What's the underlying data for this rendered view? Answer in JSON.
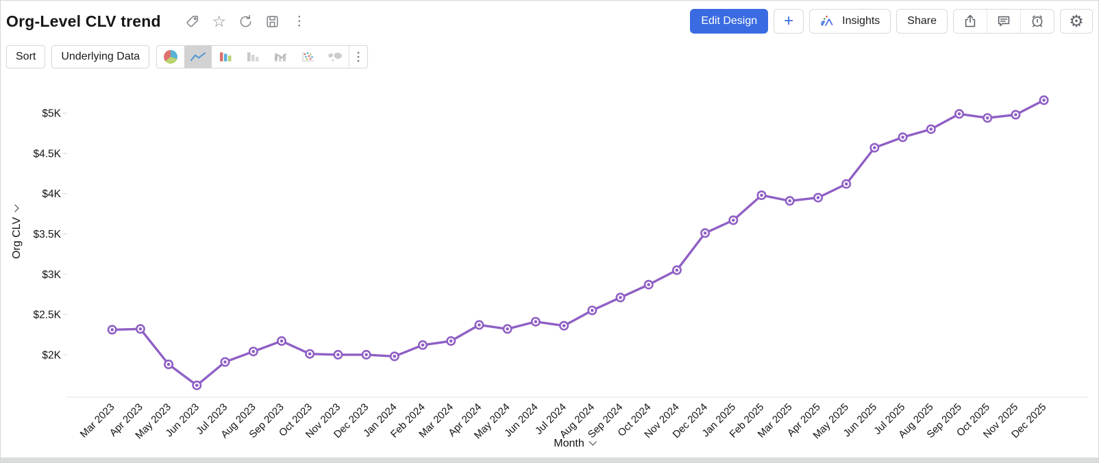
{
  "header": {
    "title": "Org-Level CLV trend",
    "title_icons": [
      "tag-icon",
      "star-icon",
      "refresh-icon",
      "save-icon",
      "more-vertical-icon"
    ],
    "buttons": {
      "edit_design": "Edit Design",
      "add": "+",
      "insights": "Insights",
      "share": "Share"
    },
    "icon_buttons": [
      "export-icon",
      "comment-icon",
      "alert-icon",
      "settings-icon"
    ],
    "accent_color": "#3a6be2"
  },
  "toolbar": {
    "sort": "Sort",
    "underlying_data": "Underlying Data",
    "chart_types": [
      "pie",
      "line",
      "bar-colored",
      "bar-gray",
      "bar-combo",
      "scatter",
      "map",
      "more"
    ],
    "selected_chart_type": "line"
  },
  "chart_data": {
    "type": "line",
    "title": "Org-Level CLV trend",
    "xlabel": "Month",
    "ylabel": "Org CLV",
    "categories": [
      "Mar 2023",
      "Apr 2023",
      "May 2023",
      "Jun 2023",
      "Jul 2023",
      "Aug 2023",
      "Sep 2023",
      "Oct 2023",
      "Nov 2023",
      "Dec 2023",
      "Jan 2024",
      "Feb 2024",
      "Mar 2024",
      "Apr 2024",
      "May 2024",
      "Jun 2024",
      "Jul 2024",
      "Aug 2024",
      "Sep 2024",
      "Oct 2024",
      "Nov 2024",
      "Dec 2024",
      "Jan 2025",
      "Feb 2025",
      "Mar 2025",
      "Apr 2025",
      "May 2025",
      "Jun 2025",
      "Jul 2025",
      "Aug 2025",
      "Sep 2025",
      "Oct 2025",
      "Nov 2025",
      "Dec 2025"
    ],
    "series": [
      {
        "name": "Org CLV",
        "values": [
          2310,
          2320,
          1880,
          1620,
          1910,
          2040,
          2170,
          2010,
          2000,
          2000,
          1980,
          2120,
          2170,
          2370,
          2320,
          2410,
          2360,
          2550,
          2710,
          2870,
          3050,
          3510,
          3670,
          3980,
          3910,
          3950,
          4120,
          4570,
          4700,
          4800,
          4990,
          4940,
          4980,
          5160
        ]
      }
    ],
    "y_ticks": {
      "labels": [
        "$5K",
        "$4.5K",
        "$4K",
        "$3.5K",
        "$3K",
        "$2.5K",
        "$2K"
      ],
      "values": [
        5000,
        4500,
        4000,
        3500,
        3000,
        2500,
        2000
      ]
    },
    "ylim": [
      1500,
      5300
    ],
    "grid": false,
    "legend": "none",
    "line_color": "#8f5fc5",
    "marker": "circle-ring"
  }
}
